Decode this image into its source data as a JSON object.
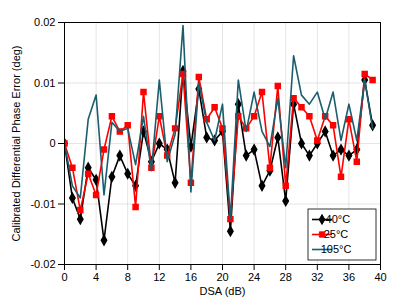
{
  "chart_data": {
    "type": "line",
    "x_label": "DSA (dB)",
    "y_label": "Calibrated Differential Phase Error (deg)",
    "x": [
      0,
      1,
      2,
      3,
      4,
      5,
      6,
      7,
      8,
      9,
      10,
      11,
      12,
      13,
      14,
      15,
      16,
      17,
      18,
      19,
      20,
      21,
      22,
      23,
      24,
      25,
      26,
      27,
      28,
      29,
      30,
      31,
      32,
      33,
      34,
      35,
      36,
      37,
      38,
      39
    ],
    "series": [
      {
        "name": "-40°C",
        "color": "#000000",
        "marker": "diamond",
        "values": [
          0,
          -0.009,
          -0.0125,
          -0.004,
          -0.006,
          -0.016,
          -0.0055,
          -0.002,
          -0.005,
          -0.007,
          0.002,
          -0.003,
          0.0,
          -0.001,
          -0.0065,
          0.012,
          -0.0005,
          0.009,
          0.001,
          0.0005,
          0.002,
          -0.0145,
          0.0065,
          -0.002,
          -0.001,
          -0.007,
          -0.0045,
          0.001,
          -0.0095,
          0.0065,
          0.0,
          -0.002,
          0.0,
          0.002,
          -0.002,
          -0.001,
          -0.002,
          -0.001,
          0.0105,
          0.003
        ]
      },
      {
        "name": "25°C",
        "color": "#ff0000",
        "marker": "square",
        "values": [
          0,
          -0.004,
          -0.011,
          -0.005,
          -0.0085,
          -0.001,
          0.0045,
          0.002,
          0.003,
          -0.0105,
          0.0085,
          -0.004,
          0.0045,
          -0.002,
          0.0025,
          0.0115,
          -0.0065,
          0.011,
          0.004,
          0.006,
          0.0025,
          -0.0125,
          0.0045,
          0.0025,
          0.0045,
          0.0085,
          -0.004,
          0.0095,
          -0.007,
          0.0075,
          0.006,
          0.0045,
          0.0005,
          0.0045,
          0.003,
          -0.0055,
          0.004,
          -0.003,
          0.0115,
          0.0105
        ]
      },
      {
        "name": "105°C",
        "color": "#1a5e6e",
        "marker": "none",
        "values": [
          0,
          -0.007,
          -0.009,
          0.004,
          0.008,
          -0.0085,
          0.0035,
          0.002,
          0.0025,
          -0.0035,
          0.0045,
          -0.0045,
          0.0105,
          -0.003,
          0.0015,
          0.0195,
          -0.008,
          0.01,
          0.0035,
          0.0005,
          0.0065,
          -0.0125,
          0.0105,
          0.002,
          0.0085,
          0.002,
          -0.0005,
          0.0075,
          -0.004,
          0.0145,
          0.008,
          0.0065,
          0.0085,
          0.004,
          0.0085,
          0.0005,
          0.0065,
          0.0005,
          0.0105,
          0.0025
        ]
      }
    ],
    "xlim": [
      0,
      40
    ],
    "xticks": [
      0,
      4,
      8,
      12,
      16,
      20,
      24,
      28,
      32,
      36,
      40
    ],
    "ylim": [
      -0.02,
      0.02
    ],
    "yticks": [
      -0.02,
      -0.01,
      0,
      0.01,
      0.02
    ],
    "grid": true,
    "legend": "lower right"
  }
}
